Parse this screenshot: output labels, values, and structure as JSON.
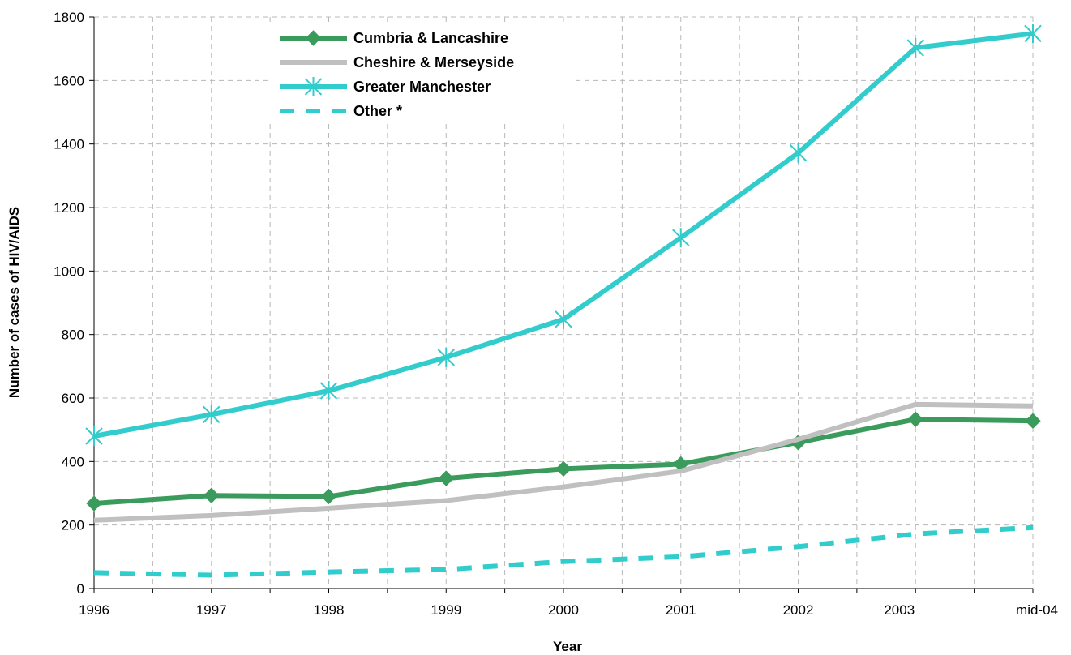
{
  "chart_data": {
    "type": "line",
    "title": "",
    "xlabel": "Year",
    "ylabel": "Number of cases of HIV/AIDS",
    "categories": [
      "1996",
      "1997",
      "1998",
      "1999",
      "2000",
      "2001",
      "2002",
      "2003",
      "mid-04"
    ],
    "ylim": [
      0,
      1800
    ],
    "yticks": [
      0,
      200,
      400,
      600,
      800,
      1000,
      1200,
      1400,
      1600,
      1800
    ],
    "grid": true,
    "legend_position": "top-center",
    "series": [
      {
        "name": "Cumbria & Lancashire",
        "color": "#3a9b5c",
        "marker": "diamond",
        "dash": "solid",
        "values": [
          268,
          293,
          290,
          347,
          377,
          392,
          460,
          533,
          528
        ]
      },
      {
        "name": "Cheshire & Merseyside",
        "color": "#c0c0c0",
        "marker": "none",
        "dash": "solid",
        "values": [
          215,
          230,
          253,
          277,
          320,
          370,
          470,
          580,
          575
        ]
      },
      {
        "name": "Greater Manchester",
        "color": "#33cccc",
        "marker": "asterisk",
        "dash": "solid",
        "values": [
          480,
          548,
          623,
          728,
          848,
          1105,
          1372,
          1703,
          1748
        ]
      },
      {
        "name": "Other *",
        "color": "#33cccc",
        "marker": "none",
        "dash": "dashed",
        "values": [
          50,
          42,
          52,
          60,
          85,
          100,
          132,
          172,
          192
        ]
      }
    ]
  }
}
